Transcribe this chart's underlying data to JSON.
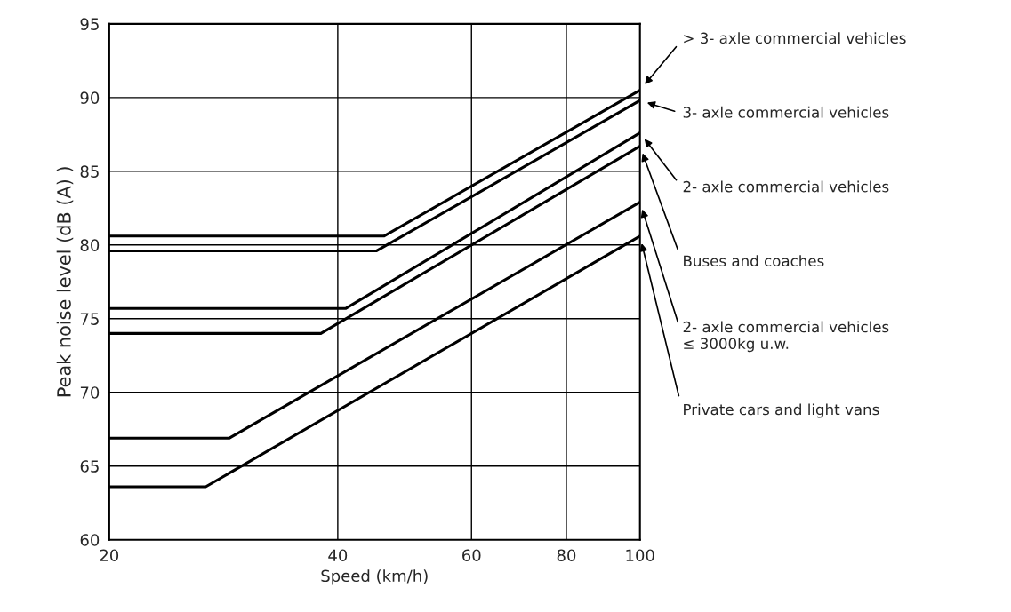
{
  "chart_data": {
    "type": "line",
    "xlabel": "Speed (km/h)",
    "ylabel": "Peak noise level (dB (A) )",
    "log": "x",
    "xlim": [
      20,
      100
    ],
    "xticks": [
      20,
      40,
      60,
      80,
      100
    ],
    "ylim": [
      60,
      95
    ],
    "yticks": [
      60,
      65,
      70,
      75,
      80,
      85,
      90,
      95
    ],
    "grid": true,
    "series": [
      {
        "name": "> 3- axle commercial vehicles",
        "color": "#000000",
        "x": [
          20,
          46,
          100
        ],
        "values": [
          80.6,
          80.6,
          90.5
        ]
      },
      {
        "name": "3- axle commercial vehicles",
        "color": "#000000",
        "x": [
          20,
          45,
          100
        ],
        "values": [
          79.6,
          79.6,
          89.8
        ]
      },
      {
        "name": "2- axle commercial vehicles",
        "color": "#000000",
        "x": [
          20,
          41,
          100
        ],
        "values": [
          75.7,
          75.7,
          87.6
        ]
      },
      {
        "name": "Buses and coaches",
        "color": "#000000",
        "x": [
          20,
          38,
          100
        ],
        "values": [
          74.0,
          74.0,
          86.7
        ]
      },
      {
        "name": "2- axle commercial vehicles\n≤ 3000kg u.w.",
        "color": "#000000",
        "x": [
          20,
          28.8,
          100
        ],
        "values": [
          66.9,
          66.9,
          82.9
        ]
      },
      {
        "name": "Private cars and light vans",
        "color": "#000000",
        "x": [
          20,
          26.8,
          100
        ],
        "values": [
          63.6,
          63.6,
          80.6
        ]
      }
    ]
  }
}
